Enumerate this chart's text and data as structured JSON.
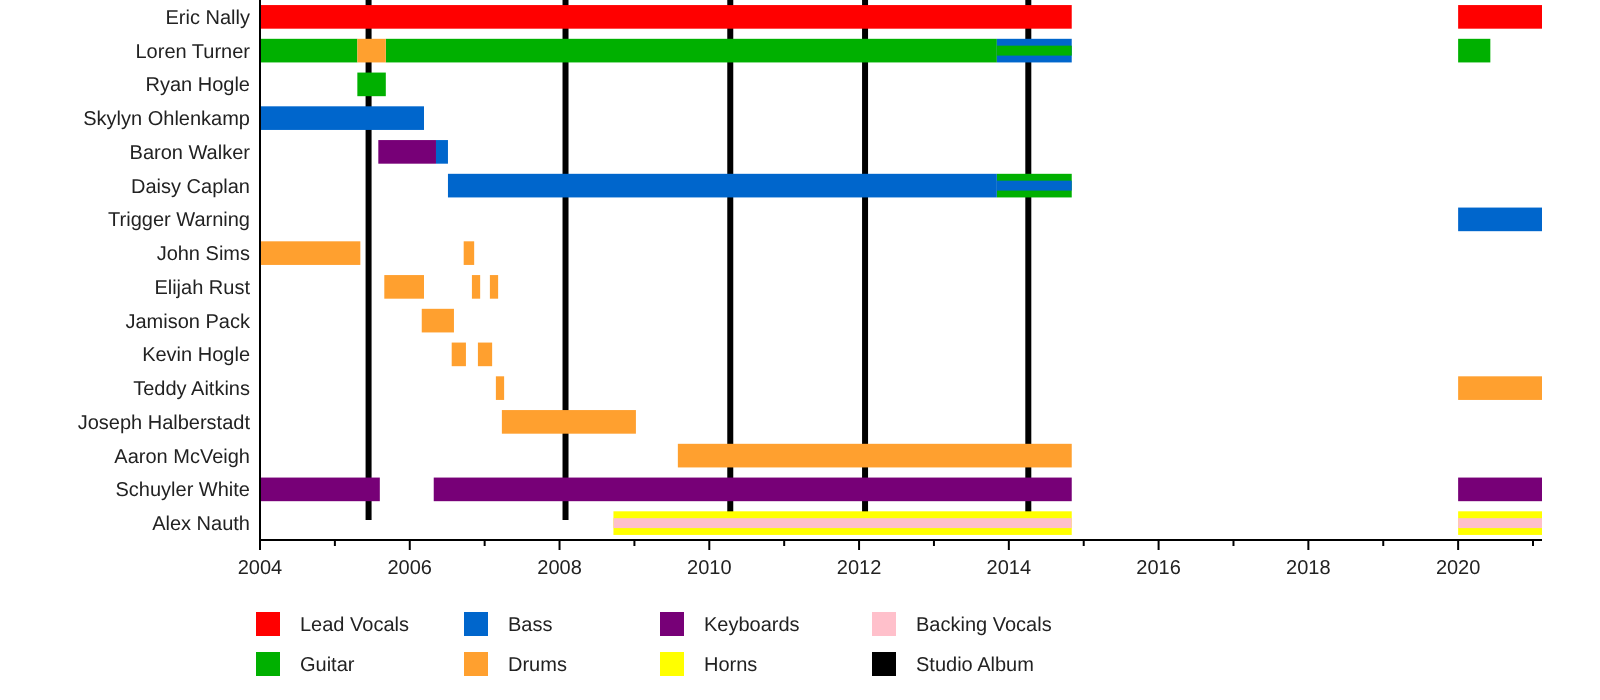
{
  "chart_data": {
    "type": "bar",
    "orientation": "horizontal",
    "legend": "bottom",
    "categories": [
      "Eric Nally",
      "Loren Turner",
      "Ryan Hogle",
      "Skylyn Ohlenkamp",
      "Baron Walker",
      "Daisy Caplan",
      "Trigger Warning",
      "John Sims",
      "Elijah Rust",
      "Jamison Pack",
      "Kevin Hogle",
      "Teddy Aitkins",
      "Joseph Halberstadt",
      "Aaron McVeigh",
      "Schuyler White",
      "Alex Nauth"
    ],
    "xlim": [
      2004,
      2021.12
    ],
    "xticks": [
      2004,
      {
        "value": 2005,
        "label": null
      },
      2006,
      {
        "value": 2007,
        "label": null
      },
      2008,
      {
        "value": 2009,
        "label": null
      },
      2010,
      {
        "value": 2011,
        "label": null
      },
      2012,
      {
        "value": 2013,
        "label": null
      },
      2014,
      {
        "value": 2015,
        "label": null
      },
      2016,
      {
        "value": 2017,
        "label": null
      },
      2018,
      {
        "value": 2019,
        "label": null
      },
      2020,
      {
        "value": 2021,
        "label": null
      }
    ],
    "series": [
      {
        "name": "Lead Vocals",
        "color": "#ff0000",
        "base": [
          2004,
          null,
          null,
          null,
          null,
          null,
          null,
          null,
          null,
          null,
          null,
          null,
          null,
          null,
          null,
          null
        ],
        "values": [
          10.84,
          null,
          null,
          null,
          null,
          null,
          null,
          null,
          null,
          null,
          null,
          null,
          null,
          null,
          null,
          null
        ]
      },
      {
        "color": "#ff0000",
        "base": [
          2020,
          null,
          null,
          null,
          null,
          null,
          null,
          null,
          null,
          null,
          null,
          null,
          null,
          null,
          null,
          null
        ],
        "values": [
          1.12,
          null,
          null,
          null,
          null,
          null,
          null,
          null,
          null,
          null,
          null,
          null,
          null,
          null,
          null,
          null
        ]
      },
      {
        "name": "Guitar",
        "color": "#00b000",
        "base": [
          null,
          2004,
          2005.3,
          null,
          null,
          2013.84,
          null,
          null,
          null,
          null,
          null,
          null,
          null,
          null,
          null,
          null
        ],
        "values": [
          null,
          1.3,
          0.38,
          null,
          null,
          1.0,
          null,
          null,
          null,
          null,
          null,
          null,
          null,
          null,
          null,
          null
        ]
      },
      {
        "color": "#00b000",
        "base": [
          null,
          2005.68,
          null,
          null,
          null,
          null,
          null,
          null,
          null,
          null,
          null,
          null,
          null,
          null,
          null,
          null
        ],
        "values": [
          null,
          8.16,
          null,
          null,
          null,
          null,
          null,
          null,
          null,
          null,
          null,
          null,
          null,
          null,
          null,
          null
        ]
      },
      {
        "color": "#00b000",
        "base": [
          null,
          2020,
          null,
          null,
          null,
          null,
          null,
          null,
          null,
          null,
          null,
          null,
          null,
          null,
          null,
          null
        ],
        "values": [
          null,
          0.43,
          null,
          null,
          null,
          null,
          null,
          null,
          null,
          null,
          null,
          null,
          null,
          null,
          null,
          null
        ]
      },
      {
        "name": "Bass",
        "color": "#0066cc",
        "base": [
          null,
          2013.84,
          null,
          2004,
          2006.35,
          2006.51,
          2020,
          null,
          null,
          null,
          null,
          null,
          null,
          null,
          null,
          null
        ],
        "values": [
          null,
          1.0,
          null,
          2.19,
          0.16,
          7.33,
          1.12,
          null,
          null,
          null,
          null,
          null,
          null,
          null,
          null,
          null
        ]
      },
      {
        "color": "#00b000",
        "base": [
          null,
          2013.84,
          null,
          null,
          null,
          null,
          null,
          null,
          null,
          null,
          null,
          null,
          null,
          null,
          null,
          null
        ],
        "values": [
          null,
          1.0,
          null,
          null,
          null,
          null,
          null,
          null,
          null,
          null,
          null,
          null,
          null,
          null,
          null,
          null
        ]
      },
      {
        "color": "#0066cc",
        "base": [
          null,
          null,
          null,
          null,
          null,
          2013.84,
          null,
          null,
          null,
          null,
          null,
          null,
          null,
          null,
          null,
          null
        ],
        "values": [
          null,
          null,
          null,
          null,
          null,
          1.0,
          null,
          null,
          null,
          null,
          null,
          null,
          null,
          null,
          null,
          null
        ]
      },
      {
        "name": "Drums",
        "color": "#ffa02f",
        "base": [
          null,
          2005.3,
          null,
          null,
          null,
          null,
          null,
          2004,
          2005.66,
          2006.16,
          2006.56,
          2007.15,
          2007.23,
          2009.58,
          null,
          null
        ],
        "values": [
          null,
          0.38,
          null,
          null,
          null,
          null,
          null,
          1.34,
          0.53,
          0.43,
          0.19,
          0.11,
          1.79,
          5.26,
          null,
          null
        ]
      },
      {
        "color": "#ffa02f",
        "base": [
          null,
          null,
          null,
          null,
          null,
          null,
          null,
          2006.72,
          2006.83,
          null,
          2006.91,
          2020,
          null,
          null,
          null,
          null
        ],
        "values": [
          null,
          null,
          null,
          null,
          null,
          null,
          null,
          0.14,
          0.11,
          null,
          0.19,
          1.12,
          null,
          null,
          null,
          null
        ]
      },
      {
        "color": "#ffa02f",
        "base": [
          null,
          null,
          null,
          null,
          null,
          null,
          null,
          null,
          2007.07,
          null,
          null,
          null,
          null,
          null,
          null,
          null
        ],
        "values": [
          null,
          null,
          null,
          null,
          null,
          null,
          null,
          null,
          0.11,
          null,
          null,
          null,
          null,
          null,
          null,
          null
        ]
      },
      {
        "name": "Keyboards",
        "color": "#770077",
        "base": [
          null,
          null,
          null,
          null,
          2005.58,
          null,
          null,
          null,
          null,
          null,
          null,
          null,
          null,
          null,
          2004,
          null
        ],
        "values": [
          null,
          null,
          null,
          null,
          0.77,
          null,
          null,
          null,
          null,
          null,
          null,
          null,
          null,
          null,
          1.6,
          null
        ]
      },
      {
        "color": "#770077",
        "base": [
          null,
          null,
          null,
          null,
          null,
          null,
          null,
          null,
          null,
          null,
          null,
          null,
          null,
          null,
          2006.32,
          null
        ],
        "values": [
          null,
          null,
          null,
          null,
          null,
          null,
          null,
          null,
          null,
          null,
          null,
          null,
          null,
          null,
          8.52,
          null
        ]
      },
      {
        "color": "#770077",
        "base": [
          null,
          null,
          null,
          null,
          null,
          null,
          null,
          null,
          null,
          null,
          null,
          null,
          null,
          null,
          2020,
          null
        ],
        "values": [
          null,
          null,
          null,
          null,
          null,
          null,
          null,
          null,
          null,
          null,
          null,
          null,
          null,
          null,
          1.12,
          null
        ]
      },
      {
        "name": "Horns",
        "color": "#ffff00",
        "base": [
          null,
          null,
          null,
          null,
          null,
          null,
          null,
          null,
          null,
          null,
          null,
          null,
          null,
          null,
          null,
          2008.72
        ],
        "values": [
          null,
          null,
          null,
          null,
          null,
          null,
          null,
          null,
          null,
          null,
          null,
          null,
          null,
          null,
          null,
          6.12
        ]
      },
      {
        "color": "#ffff00",
        "base": [
          null,
          null,
          null,
          null,
          null,
          null,
          null,
          null,
          null,
          null,
          null,
          null,
          null,
          null,
          null,
          2020
        ],
        "values": [
          null,
          null,
          null,
          null,
          null,
          null,
          null,
          null,
          null,
          null,
          null,
          null,
          null,
          null,
          null,
          1.12
        ]
      },
      {
        "name": "Backing Vocals",
        "color": "#ffc0cb",
        "base": [
          null,
          null,
          null,
          null,
          null,
          null,
          null,
          null,
          null,
          null,
          null,
          null,
          null,
          null,
          null,
          2008.72
        ],
        "values": [
          null,
          null,
          null,
          null,
          null,
          null,
          null,
          null,
          null,
          null,
          null,
          null,
          null,
          null,
          null,
          6.12
        ]
      },
      {
        "color": "#ffc0cb",
        "base": [
          null,
          null,
          null,
          null,
          null,
          null,
          null,
          null,
          null,
          null,
          null,
          null,
          null,
          null,
          null,
          2020
        ],
        "values": [
          null,
          null,
          null,
          null,
          null,
          null,
          null,
          null,
          null,
          null,
          null,
          null,
          null,
          null,
          null,
          1.12
        ]
      }
    ],
    "ref_lines": [
      {
        "axis": "x",
        "value": 2005.45,
        "label": "Studio Album",
        "color": "#000000"
      },
      {
        "axis": "x",
        "value": 2008.08,
        "color": "#000000"
      },
      {
        "axis": "x",
        "value": 2010.28,
        "color": "#000000"
      },
      {
        "axis": "x",
        "value": 2012.08,
        "color": "#000000"
      },
      {
        "axis": "x",
        "value": 2014.26,
        "color": "#000000"
      }
    ]
  }
}
